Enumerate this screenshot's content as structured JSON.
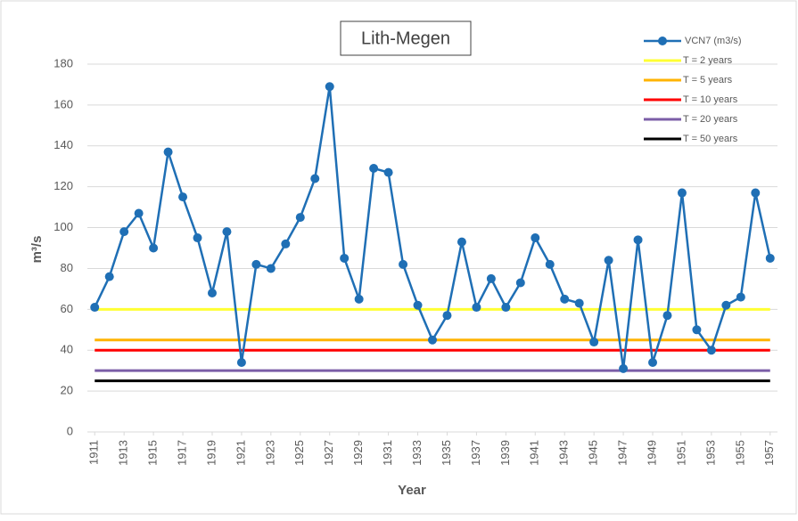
{
  "chart_data": {
    "type": "line",
    "title": "Lith-Megen",
    "xlabel": "Year",
    "ylabel": "m³/s",
    "x": [
      1911,
      1912,
      1913,
      1914,
      1915,
      1916,
      1917,
      1918,
      1919,
      1920,
      1921,
      1922,
      1923,
      1924,
      1925,
      1926,
      1927,
      1928,
      1929,
      1930,
      1931,
      1932,
      1933,
      1934,
      1935,
      1936,
      1937,
      1938,
      1939,
      1940,
      1941,
      1942,
      1943,
      1944,
      1945,
      1946,
      1947,
      1948,
      1949,
      1950,
      1951,
      1952,
      1953,
      1954,
      1955,
      1956,
      1957
    ],
    "series": [
      {
        "name": "VCN7 (m3/s)",
        "color": "#1f6fb5",
        "values": [
          61,
          76,
          98,
          107,
          90,
          137,
          115,
          95,
          68,
          98,
          34,
          82,
          80,
          92,
          105,
          124,
          169,
          85,
          65,
          129,
          127,
          82,
          62,
          45,
          57,
          93,
          61,
          75,
          61,
          73,
          95,
          82,
          65,
          63,
          44,
          84,
          31,
          94,
          34,
          57,
          117,
          50,
          40,
          62,
          66,
          117,
          85
        ]
      }
    ],
    "hlines": [
      {
        "name": "T = 2 years",
        "color": "#ffff33",
        "value": 60
      },
      {
        "name": "T = 5 years",
        "color": "#ffb300",
        "value": 45
      },
      {
        "name": "T = 10 years",
        "color": "#ff0000",
        "value": 40
      },
      {
        "name": "T = 20 years",
        "color": "#7b5ea7",
        "value": 30
      },
      {
        "name": "T = 50 years",
        "color": "#000000",
        "value": 25
      }
    ],
    "xlim": [
      1910.5,
      1957.5
    ],
    "xticks": [
      1911,
      1913,
      1915,
      1917,
      1919,
      1921,
      1923,
      1925,
      1927,
      1929,
      1931,
      1933,
      1935,
      1937,
      1939,
      1941,
      1943,
      1945,
      1947,
      1949,
      1951,
      1953,
      1955,
      1957
    ],
    "ylim": [
      0,
      180
    ],
    "yticks": [
      0,
      20,
      40,
      60,
      80,
      100,
      120,
      140,
      160,
      180
    ],
    "grid": true,
    "legend": "top-right"
  }
}
